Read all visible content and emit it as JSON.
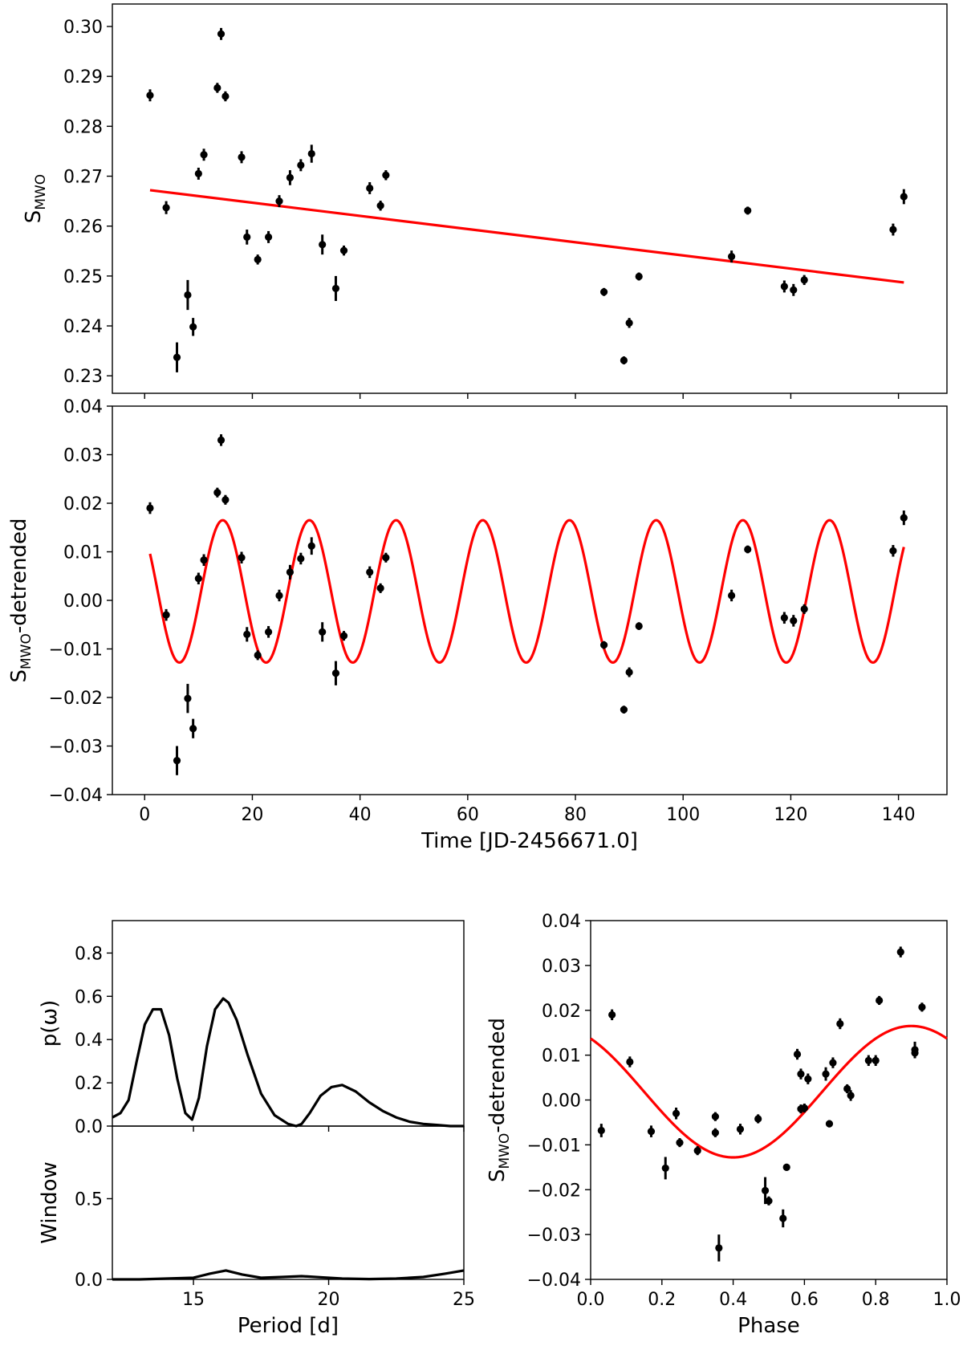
{
  "chart_data": [
    {
      "type": "scatter",
      "title": "",
      "xlabel": "",
      "ylabel": "S",
      "ylabel_sub": "MWO",
      "xlim": [
        -6,
        149
      ],
      "ylim": [
        0.2265,
        0.3045
      ],
      "yticks": [
        "0.23",
        "0.24",
        "0.25",
        "0.26",
        "0.27",
        "0.28",
        "0.29",
        "0.30"
      ],
      "ytick_values": [
        0.23,
        0.24,
        0.25,
        0.26,
        0.27,
        0.28,
        0.29,
        0.3
      ],
      "xticks": [
        0,
        20,
        40,
        60,
        80,
        100,
        120,
        140
      ],
      "x": [
        1.0,
        4.0,
        6.0,
        8.0,
        9.0,
        10.0,
        11.0,
        13.5,
        14.2,
        15.0,
        18.0,
        19.0,
        21.0,
        23.0,
        25.0,
        27.0,
        29.0,
        31.0,
        33.0,
        35.5,
        37.0,
        41.8,
        43.8,
        44.8,
        85.3,
        89.0,
        90.0,
        91.8,
        109.0,
        112.0,
        118.8,
        120.5,
        122.5,
        139.0,
        141.0
      ],
      "y": [
        0.2862,
        0.2637,
        0.2337,
        0.2462,
        0.2398,
        0.2705,
        0.2743,
        0.2877,
        0.2985,
        0.286,
        0.2738,
        0.2578,
        0.2533,
        0.2578,
        0.265,
        0.2697,
        0.2722,
        0.2745,
        0.2563,
        0.2475,
        0.2551,
        0.2676,
        0.2641,
        0.2702,
        0.2468,
        0.2331,
        0.2406,
        0.2499,
        0.2539,
        0.2631,
        0.2479,
        0.2472,
        0.2492,
        0.2593,
        0.2659
      ],
      "yerr": [
        0.0012,
        0.0013,
        0.003,
        0.003,
        0.0018,
        0.0012,
        0.0012,
        0.001,
        0.0012,
        0.001,
        0.0012,
        0.0015,
        0.001,
        0.0012,
        0.0012,
        0.0015,
        0.0012,
        0.0018,
        0.002,
        0.0025,
        0.001,
        0.0012,
        0.001,
        0.001,
        0.0008,
        0.0008,
        0.001,
        0.0008,
        0.0012,
        0.0008,
        0.0012,
        0.0012,
        0.001,
        0.0012,
        0.0015
      ],
      "fit": {
        "type": "line",
        "x": [
          1,
          141
        ],
        "y": [
          0.2672,
          0.2487
        ],
        "color": "#ff0000"
      }
    },
    {
      "type": "scatter",
      "title": "",
      "xlabel": "Time [JD-2456671.0]",
      "ylabel": "S",
      "ylabel_sub": "MWO",
      "ylabel_suffix": "-detrended",
      "xlim": [
        -6,
        149
      ],
      "ylim": [
        -0.04,
        0.04
      ],
      "yticks": [
        "−0.04",
        "−0.03",
        "−0.02",
        "−0.01",
        "0.00",
        "0.01",
        "0.02",
        "0.03",
        "0.04"
      ],
      "ytick_values": [
        -0.04,
        -0.03,
        -0.02,
        -0.01,
        0.0,
        0.01,
        0.02,
        0.03,
        0.04
      ],
      "xticks": [
        "0",
        "20",
        "40",
        "60",
        "80",
        "100",
        "120",
        "140"
      ],
      "xtick_values": [
        0,
        20,
        40,
        60,
        80,
        100,
        120,
        140
      ],
      "x": [
        1.0,
        4.0,
        6.0,
        8.0,
        9.0,
        10.0,
        11.0,
        13.5,
        14.2,
        15.0,
        18.0,
        19.0,
        21.0,
        23.0,
        25.0,
        27.0,
        29.0,
        31.0,
        33.0,
        35.5,
        37.0,
        41.8,
        43.8,
        44.8,
        85.3,
        89.0,
        90.0,
        91.8,
        109.0,
        112.0,
        118.8,
        120.5,
        122.5,
        139.0,
        141.0
      ],
      "y": [
        0.019,
        -0.003,
        -0.033,
        -0.0202,
        -0.0264,
        0.0045,
        0.0083,
        0.0222,
        0.033,
        0.0207,
        0.0088,
        -0.007,
        -0.0113,
        -0.0065,
        0.001,
        0.0058,
        0.0086,
        0.0112,
        -0.0065,
        -0.015,
        -0.0073,
        0.0058,
        0.0025,
        0.0088,
        -0.0092,
        -0.0225,
        -0.0148,
        -0.0053,
        0.001,
        0.0105,
        -0.0036,
        -0.0042,
        -0.0018,
        0.0102,
        0.017
      ],
      "yerr": [
        0.0012,
        0.0012,
        0.003,
        0.003,
        0.002,
        0.0012,
        0.0012,
        0.001,
        0.0012,
        0.001,
        0.0012,
        0.0015,
        0.001,
        0.0012,
        0.0012,
        0.0015,
        0.0012,
        0.0018,
        0.002,
        0.0025,
        0.001,
        0.0012,
        0.001,
        0.001,
        0.0008,
        0.0008,
        0.001,
        0.0008,
        0.0012,
        0.0008,
        0.0012,
        0.0012,
        0.001,
        0.0012,
        0.0015
      ],
      "fit": {
        "type": "sinusoid",
        "period": 16.1,
        "amplitude": 0.01465,
        "offset": 0.00185,
        "peak_time": 14.5,
        "xrange": [
          1,
          141
        ],
        "color": "#ff0000"
      }
    },
    {
      "type": "line",
      "title": "",
      "xlabel": "Period [d]",
      "ylabel": "p(ω)",
      "xlim": [
        12,
        25
      ],
      "ylim": [
        0.0,
        0.95
      ],
      "yticks": [
        "0.0",
        "0.2",
        "0.4",
        "0.6",
        "0.8"
      ],
      "ytick_values": [
        0.0,
        0.2,
        0.4,
        0.6,
        0.8
      ],
      "xticks": [
        "15",
        "20",
        "25"
      ],
      "xtick_values": [
        15,
        20,
        25
      ],
      "x": [
        12.0,
        12.3,
        12.6,
        12.9,
        13.2,
        13.5,
        13.8,
        14.1,
        14.4,
        14.7,
        14.95,
        15.2,
        15.5,
        15.8,
        16.1,
        16.3,
        16.6,
        17.0,
        17.5,
        18.0,
        18.5,
        18.8,
        19.0,
        19.3,
        19.7,
        20.1,
        20.5,
        21.0,
        21.5,
        22.0,
        22.5,
        23.0,
        23.5,
        24.0,
        24.5,
        25.0
      ],
      "y": [
        0.04,
        0.06,
        0.12,
        0.3,
        0.47,
        0.54,
        0.54,
        0.42,
        0.22,
        0.06,
        0.03,
        0.13,
        0.37,
        0.54,
        0.59,
        0.57,
        0.49,
        0.33,
        0.15,
        0.05,
        0.01,
        0.0,
        0.01,
        0.06,
        0.14,
        0.18,
        0.19,
        0.16,
        0.11,
        0.07,
        0.04,
        0.02,
        0.01,
        0.005,
        0.0,
        0.0
      ]
    },
    {
      "type": "line",
      "title": "",
      "xlabel": "Period [d]",
      "ylabel": "Window",
      "xlim": [
        12,
        25
      ],
      "ylim": [
        0.0,
        0.95
      ],
      "yticks": [
        "0.0",
        "0.5"
      ],
      "ytick_values": [
        0.0,
        0.5
      ],
      "xticks": [
        "15",
        "20",
        "25"
      ],
      "xtick_values": [
        15,
        20,
        25
      ],
      "x": [
        12.0,
        13.0,
        14.0,
        15.0,
        15.6,
        16.2,
        16.8,
        17.5,
        18.3,
        19.0,
        19.8,
        20.5,
        21.5,
        22.5,
        23.5,
        24.3,
        25.0
      ],
      "y": [
        0.0,
        0.0,
        0.005,
        0.01,
        0.035,
        0.055,
        0.03,
        0.01,
        0.015,
        0.02,
        0.012,
        0.005,
        0.002,
        0.005,
        0.015,
        0.035,
        0.055
      ]
    },
    {
      "type": "scatter",
      "title": "",
      "xlabel": "Phase",
      "ylabel": "S",
      "ylabel_sub": "MWO",
      "ylabel_suffix": "-detrended",
      "xlim": [
        0.0,
        1.0
      ],
      "ylim": [
        -0.04,
        0.04
      ],
      "yticks": [
        "−0.04",
        "−0.03",
        "−0.02",
        "−0.01",
        "0.00",
        "0.01",
        "0.02",
        "0.03",
        "0.04"
      ],
      "ytick_values": [
        -0.04,
        -0.03,
        -0.02,
        -0.01,
        0.0,
        0.01,
        0.02,
        0.03,
        0.04
      ],
      "xticks": [
        "0.0",
        "0.2",
        "0.4",
        "0.6",
        "0.8",
        "1.0"
      ],
      "xtick_values": [
        0.0,
        0.2,
        0.4,
        0.6,
        0.8,
        1.0
      ],
      "x": [
        0.03,
        0.06,
        0.11,
        0.17,
        0.21,
        0.24,
        0.25,
        0.3,
        0.35,
        0.35,
        0.36,
        0.42,
        0.47,
        0.49,
        0.5,
        0.54,
        0.55,
        0.58,
        0.59,
        0.6,
        0.61,
        0.66,
        0.67,
        0.68,
        0.7,
        0.72,
        0.73,
        0.78,
        0.8,
        0.81,
        0.87,
        0.91,
        0.91,
        0.93,
        0.59
      ],
      "y": [
        -0.0068,
        0.019,
        0.0085,
        -0.007,
        -0.0152,
        -0.003,
        -0.0095,
        -0.0113,
        -0.0037,
        -0.0073,
        -0.033,
        -0.0065,
        -0.0042,
        -0.0202,
        -0.0225,
        -0.0264,
        -0.015,
        0.0102,
        0.0058,
        -0.0018,
        0.0047,
        0.0058,
        -0.0053,
        0.0083,
        0.017,
        0.0025,
        0.001,
        0.0088,
        0.0088,
        0.0222,
        0.033,
        0.0105,
        0.0112,
        0.0207,
        -0.002
      ],
      "yerr": [
        0.0015,
        0.0012,
        0.0012,
        0.0013,
        0.0025,
        0.0013,
        0.001,
        0.001,
        0.001,
        0.001,
        0.003,
        0.0012,
        0.001,
        0.003,
        0.001,
        0.002,
        0.0008,
        0.0012,
        0.0012,
        0.001,
        0.0012,
        0.0015,
        0.0008,
        0.0012,
        0.0012,
        0.001,
        0.0012,
        0.0012,
        0.0012,
        0.001,
        0.0012,
        0.0012,
        0.0018,
        0.001,
        0.001
      ],
      "fit": {
        "type": "sinusoid",
        "period": 1.0,
        "amplitude": 0.01465,
        "offset": 0.00185,
        "peak_time": 0.9,
        "xrange": [
          0.0,
          1.0
        ],
        "color": "#ff0000"
      }
    }
  ]
}
